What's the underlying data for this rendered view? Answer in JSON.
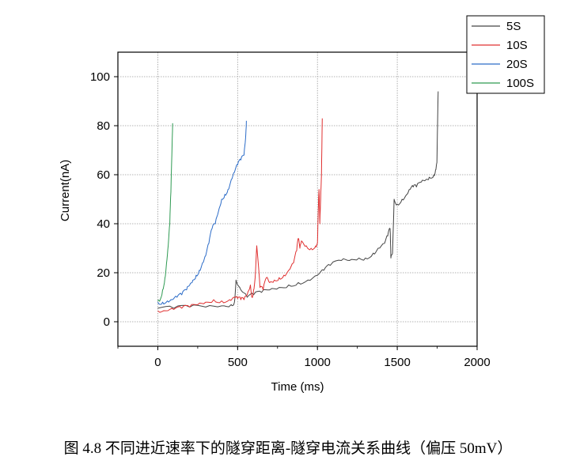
{
  "chart_data": {
    "type": "line",
    "title": "",
    "xlabel": "Time (ms)",
    "ylabel": "Current(nA)",
    "xlim": [
      -250,
      2000
    ],
    "ylim": [
      -10,
      110
    ],
    "xticks": [
      0,
      500,
      1000,
      1500,
      2000
    ],
    "yticks": [
      0,
      20,
      40,
      60,
      80,
      100
    ],
    "grid": true,
    "legend": "top-right",
    "series": [
      {
        "name": "5S",
        "color": "#444444",
        "x": [
          0,
          100,
          200,
          300,
          400,
          460,
          480,
          490,
          520,
          560,
          600,
          650,
          700,
          760,
          820,
          880,
          940,
          1000,
          1040,
          1080,
          1150,
          1200,
          1260,
          1300,
          1350,
          1380,
          1420,
          1440,
          1455,
          1460,
          1470,
          1480,
          1500,
          1530,
          1560,
          1580,
          1600,
          1620,
          1650,
          1680,
          1700,
          1730,
          1740,
          1748,
          1752,
          1756
        ],
        "y": [
          5.5,
          5.5,
          6,
          6,
          6.5,
          7,
          8,
          17,
          13,
          10,
          11,
          12,
          13,
          14,
          15,
          16,
          17,
          19,
          21,
          23,
          25,
          25,
          26,
          26,
          28,
          30,
          32,
          35,
          38,
          26,
          28,
          50,
          48,
          50,
          52,
          54,
          55,
          55,
          57,
          58,
          59,
          60,
          62,
          65,
          80,
          94
        ]
      },
      {
        "name": "10S",
        "color": "#e03030",
        "x": [
          0,
          50,
          100,
          150,
          200,
          250,
          300,
          350,
          400,
          450,
          480,
          500,
          520,
          540,
          560,
          580,
          590,
          600,
          610,
          620,
          640,
          660,
          680,
          700,
          730,
          760,
          790,
          820,
          850,
          870,
          880,
          890,
          900,
          930,
          960,
          990,
          1000,
          1005,
          1010,
          1015,
          1020,
          1025,
          1030
        ],
        "y": [
          4.5,
          4.5,
          5,
          5.5,
          6,
          7,
          8,
          9,
          8.5,
          9,
          10,
          9.5,
          9,
          9,
          11,
          15,
          10,
          13,
          18,
          31,
          14,
          13,
          18,
          16,
          17,
          18,
          19,
          21,
          24,
          29,
          34,
          30,
          33,
          31,
          30,
          31,
          32,
          45,
          54,
          40,
          50,
          60,
          83
        ]
      },
      {
        "name": "20S",
        "color": "#2c6cc8",
        "x": [
          0,
          30,
          60,
          90,
          120,
          150,
          180,
          200,
          220,
          240,
          260,
          280,
          300,
          320,
          340,
          360,
          380,
          400,
          420,
          440,
          460,
          480,
          500,
          520,
          540,
          550,
          555
        ],
        "y": [
          8,
          8,
          8.5,
          9,
          10,
          11,
          13,
          15,
          17,
          19,
          21,
          24,
          27,
          32,
          38,
          40,
          45,
          50,
          52,
          54,
          58,
          61,
          64,
          66,
          68,
          75,
          82
        ]
      },
      {
        "name": "100S",
        "color": "#2e9a52",
        "x": [
          0,
          15,
          30,
          45,
          55,
          65,
          75,
          82,
          88,
          93
        ],
        "y": [
          8.5,
          9,
          13,
          18,
          24,
          31,
          40,
          53,
          68,
          81
        ]
      }
    ]
  },
  "caption": "图 4.8    不同进近速率下的隧穿距离-隧穿电流关系曲线（偏压 50mV）"
}
